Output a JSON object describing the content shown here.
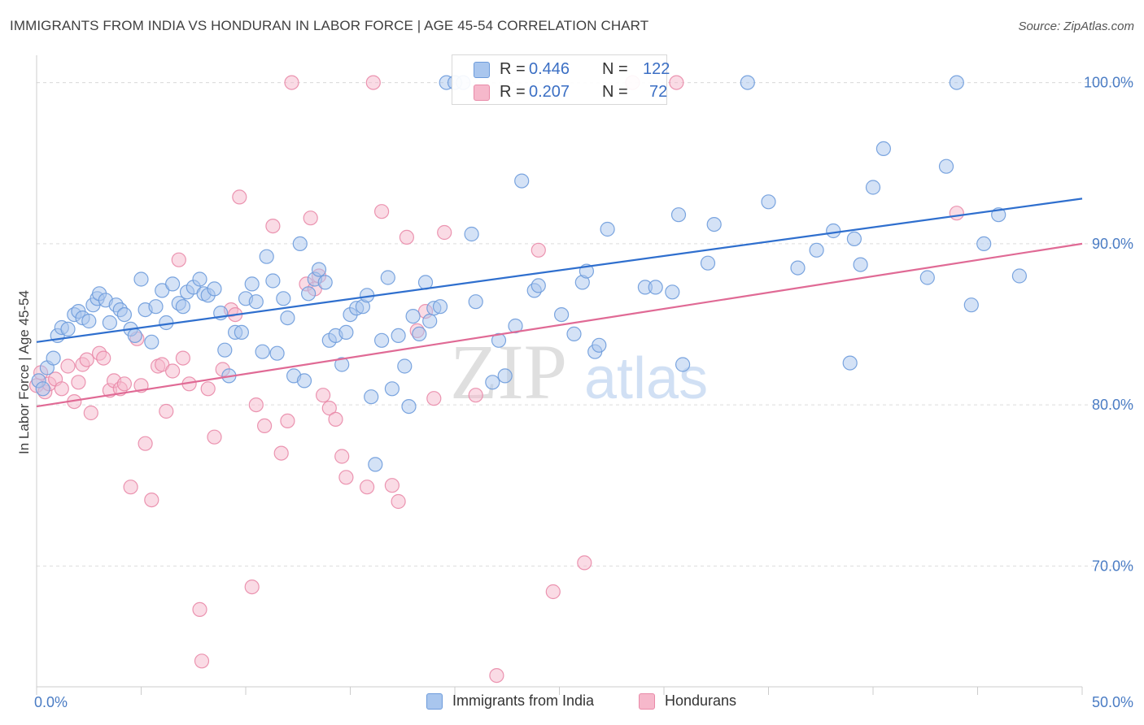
{
  "header": {
    "title": "IMMIGRANTS FROM INDIA VS HONDURAN IN LABOR FORCE | AGE 45-54 CORRELATION CHART",
    "source": "Source: ZipAtlas.com"
  },
  "watermark": {
    "zip": "ZIP",
    "atlas": "atlas"
  },
  "legend": {
    "r_label": "R = ",
    "n_label": "N = ",
    "series": [
      {
        "r": "0.446",
        "n": "122"
      },
      {
        "r": "0.207",
        "n": "72"
      }
    ]
  },
  "colors": {
    "india_fill": "#a9c6ee",
    "india_stroke": "#6d9bdb",
    "india_line": "#2f6fce",
    "honduran_fill": "#f6b8cb",
    "honduran_stroke": "#e98aa8",
    "honduran_line": "#e06a95",
    "tick_text": "#4a7cc4",
    "grid": "#dddddd"
  },
  "chart_data": {
    "type": "scatter",
    "title": "IMMIGRANTS FROM INDIA VS HONDURAN IN LABOR FORCE | AGE 45-54 CORRELATION CHART",
    "xlabel": "",
    "ylabel": "In Labor Force | Age 45-54",
    "xlim": [
      0,
      50
    ],
    "ylim": [
      62.5,
      102
    ],
    "x_ticks": [
      0,
      50
    ],
    "x_tick_labels": [
      "0.0%",
      "50.0%"
    ],
    "y_ticks": [
      70,
      80,
      90,
      100
    ],
    "y_tick_labels": [
      "70.0%",
      "80.0%",
      "90.0%",
      "100.0%"
    ],
    "grid": "horizontal dashed",
    "legend_placement": "top-center",
    "series": [
      {
        "name": "Immigrants from India",
        "trend": {
          "x": [
            0,
            50
          ],
          "y": [
            83.9,
            92.8
          ]
        },
        "points": [
          [
            0.1,
            81.5
          ],
          [
            0.3,
            81.0
          ],
          [
            0.5,
            82.3
          ],
          [
            0.8,
            82.9
          ],
          [
            1.0,
            84.3
          ],
          [
            1.2,
            84.8
          ],
          [
            1.5,
            84.7
          ],
          [
            1.8,
            85.6
          ],
          [
            2.0,
            85.8
          ],
          [
            2.2,
            85.4
          ],
          [
            2.5,
            85.2
          ],
          [
            2.7,
            86.2
          ],
          [
            2.9,
            86.6
          ],
          [
            3.0,
            86.9
          ],
          [
            3.3,
            86.5
          ],
          [
            3.5,
            85.1
          ],
          [
            3.8,
            86.2
          ],
          [
            4.0,
            85.9
          ],
          [
            4.2,
            85.6
          ],
          [
            4.5,
            84.7
          ],
          [
            4.7,
            84.3
          ],
          [
            5.0,
            87.8
          ],
          [
            5.2,
            85.9
          ],
          [
            5.5,
            83.9
          ],
          [
            5.7,
            86.1
          ],
          [
            6.0,
            87.1
          ],
          [
            6.2,
            85.1
          ],
          [
            6.5,
            87.5
          ],
          [
            6.8,
            86.3
          ],
          [
            7.0,
            86.1
          ],
          [
            7.2,
            87.0
          ],
          [
            7.5,
            87.3
          ],
          [
            7.8,
            87.8
          ],
          [
            8.0,
            86.9
          ],
          [
            8.2,
            86.8
          ],
          [
            8.5,
            87.2
          ],
          [
            8.8,
            85.7
          ],
          [
            9.0,
            83.4
          ],
          [
            9.2,
            81.8
          ],
          [
            9.5,
            84.5
          ],
          [
            9.8,
            84.5
          ],
          [
            10.0,
            86.6
          ],
          [
            10.3,
            87.5
          ],
          [
            10.5,
            86.4
          ],
          [
            10.8,
            83.3
          ],
          [
            11.0,
            89.2
          ],
          [
            11.3,
            87.7
          ],
          [
            11.5,
            83.2
          ],
          [
            11.8,
            86.6
          ],
          [
            12.0,
            85.4
          ],
          [
            12.3,
            81.8
          ],
          [
            12.6,
            90.0
          ],
          [
            12.8,
            81.5
          ],
          [
            13.0,
            86.9
          ],
          [
            13.3,
            87.8
          ],
          [
            13.5,
            88.4
          ],
          [
            13.8,
            87.6
          ],
          [
            14.0,
            84.0
          ],
          [
            14.3,
            84.3
          ],
          [
            14.6,
            82.5
          ],
          [
            14.8,
            84.5
          ],
          [
            15.0,
            85.6
          ],
          [
            15.3,
            86.0
          ],
          [
            15.6,
            86.1
          ],
          [
            15.8,
            86.8
          ],
          [
            16.0,
            80.5
          ],
          [
            16.2,
            76.3
          ],
          [
            16.5,
            84.0
          ],
          [
            16.8,
            87.9
          ],
          [
            17.0,
            81.0
          ],
          [
            17.3,
            84.3
          ],
          [
            17.6,
            82.4
          ],
          [
            17.8,
            79.9
          ],
          [
            18.0,
            85.5
          ],
          [
            18.3,
            84.4
          ],
          [
            18.6,
            87.6
          ],
          [
            18.8,
            85.2
          ],
          [
            19.0,
            86.0
          ],
          [
            19.3,
            86.1
          ],
          [
            19.6,
            100.0
          ],
          [
            20.0,
            100.0
          ],
          [
            20.4,
            100.0
          ],
          [
            20.8,
            90.6
          ],
          [
            21.0,
            86.4
          ],
          [
            21.8,
            81.4
          ],
          [
            22.1,
            84.0
          ],
          [
            22.4,
            81.8
          ],
          [
            22.9,
            84.9
          ],
          [
            23.2,
            93.9
          ],
          [
            23.8,
            87.1
          ],
          [
            24.0,
            87.4
          ],
          [
            25.1,
            85.6
          ],
          [
            25.7,
            84.4
          ],
          [
            26.1,
            87.6
          ],
          [
            26.3,
            88.3
          ],
          [
            26.7,
            83.3
          ],
          [
            26.9,
            83.7
          ],
          [
            27.3,
            90.9
          ],
          [
            29.1,
            87.3
          ],
          [
            29.6,
            87.3
          ],
          [
            30.4,
            87.0
          ],
          [
            30.7,
            91.8
          ],
          [
            30.9,
            82.5
          ],
          [
            32.1,
            88.8
          ],
          [
            32.4,
            91.2
          ],
          [
            34.0,
            100.0
          ],
          [
            35.0,
            92.6
          ],
          [
            36.4,
            88.5
          ],
          [
            37.3,
            89.6
          ],
          [
            38.1,
            90.8
          ],
          [
            38.9,
            82.6
          ],
          [
            39.1,
            90.3
          ],
          [
            39.4,
            88.7
          ],
          [
            40.0,
            93.5
          ],
          [
            40.5,
            95.9
          ],
          [
            44.0,
            100.0
          ],
          [
            45.3,
            90.0
          ],
          [
            42.6,
            87.9
          ],
          [
            44.7,
            86.2
          ],
          [
            46.0,
            91.8
          ],
          [
            47.0,
            88.0
          ],
          [
            43.5,
            94.8
          ]
        ]
      },
      {
        "name": "Hondurans",
        "trend": {
          "x": [
            0,
            50
          ],
          "y": [
            79.9,
            90.0
          ]
        },
        "points": [
          [
            0.0,
            81.2
          ],
          [
            0.2,
            82.0
          ],
          [
            0.4,
            80.8
          ],
          [
            0.6,
            81.3
          ],
          [
            0.9,
            81.6
          ],
          [
            1.2,
            81.0
          ],
          [
            1.5,
            82.4
          ],
          [
            1.8,
            80.2
          ],
          [
            2.0,
            81.4
          ],
          [
            2.2,
            82.5
          ],
          [
            2.4,
            82.8
          ],
          [
            2.6,
            79.5
          ],
          [
            3.0,
            83.2
          ],
          [
            3.2,
            82.9
          ],
          [
            3.5,
            80.9
          ],
          [
            3.7,
            81.5
          ],
          [
            4.0,
            81.0
          ],
          [
            4.2,
            81.3
          ],
          [
            4.5,
            74.9
          ],
          [
            4.8,
            84.1
          ],
          [
            5.0,
            81.2
          ],
          [
            5.2,
            77.6
          ],
          [
            5.5,
            74.1
          ],
          [
            5.8,
            82.4
          ],
          [
            6.0,
            82.5
          ],
          [
            6.2,
            79.6
          ],
          [
            6.5,
            82.1
          ],
          [
            6.8,
            89.0
          ],
          [
            7.0,
            82.9
          ],
          [
            7.3,
            81.3
          ],
          [
            7.8,
            67.3
          ],
          [
            7.9,
            64.1
          ],
          [
            8.2,
            81.0
          ],
          [
            8.5,
            78.0
          ],
          [
            8.9,
            82.2
          ],
          [
            9.3,
            85.9
          ],
          [
            9.5,
            85.6
          ],
          [
            9.7,
            92.9
          ],
          [
            10.3,
            68.7
          ],
          [
            10.5,
            80.0
          ],
          [
            10.9,
            78.7
          ],
          [
            11.3,
            91.1
          ],
          [
            11.7,
            77.0
          ],
          [
            12.0,
            79.0
          ],
          [
            12.2,
            100.0
          ],
          [
            12.9,
            87.5
          ],
          [
            13.1,
            91.6
          ],
          [
            13.3,
            87.2
          ],
          [
            13.5,
            88.0
          ],
          [
            13.7,
            80.6
          ],
          [
            14.0,
            79.8
          ],
          [
            14.3,
            79.1
          ],
          [
            14.6,
            76.8
          ],
          [
            14.8,
            75.5
          ],
          [
            15.8,
            74.9
          ],
          [
            16.1,
            100.0
          ],
          [
            16.5,
            92.0
          ],
          [
            17.0,
            75.0
          ],
          [
            17.3,
            74.0
          ],
          [
            17.7,
            90.4
          ],
          [
            18.2,
            84.6
          ],
          [
            18.6,
            85.8
          ],
          [
            19.0,
            80.4
          ],
          [
            19.5,
            90.7
          ],
          [
            21.0,
            80.6
          ],
          [
            22.0,
            63.2
          ],
          [
            24.0,
            89.6
          ],
          [
            24.7,
            68.4
          ],
          [
            26.2,
            70.2
          ],
          [
            28.5,
            100.0
          ],
          [
            30.6,
            100.0
          ],
          [
            44.0,
            91.9
          ]
        ]
      }
    ]
  },
  "bottom_legend": {
    "items": [
      {
        "label": "Immigrants from India"
      },
      {
        "label": "Hondurans"
      }
    ]
  }
}
